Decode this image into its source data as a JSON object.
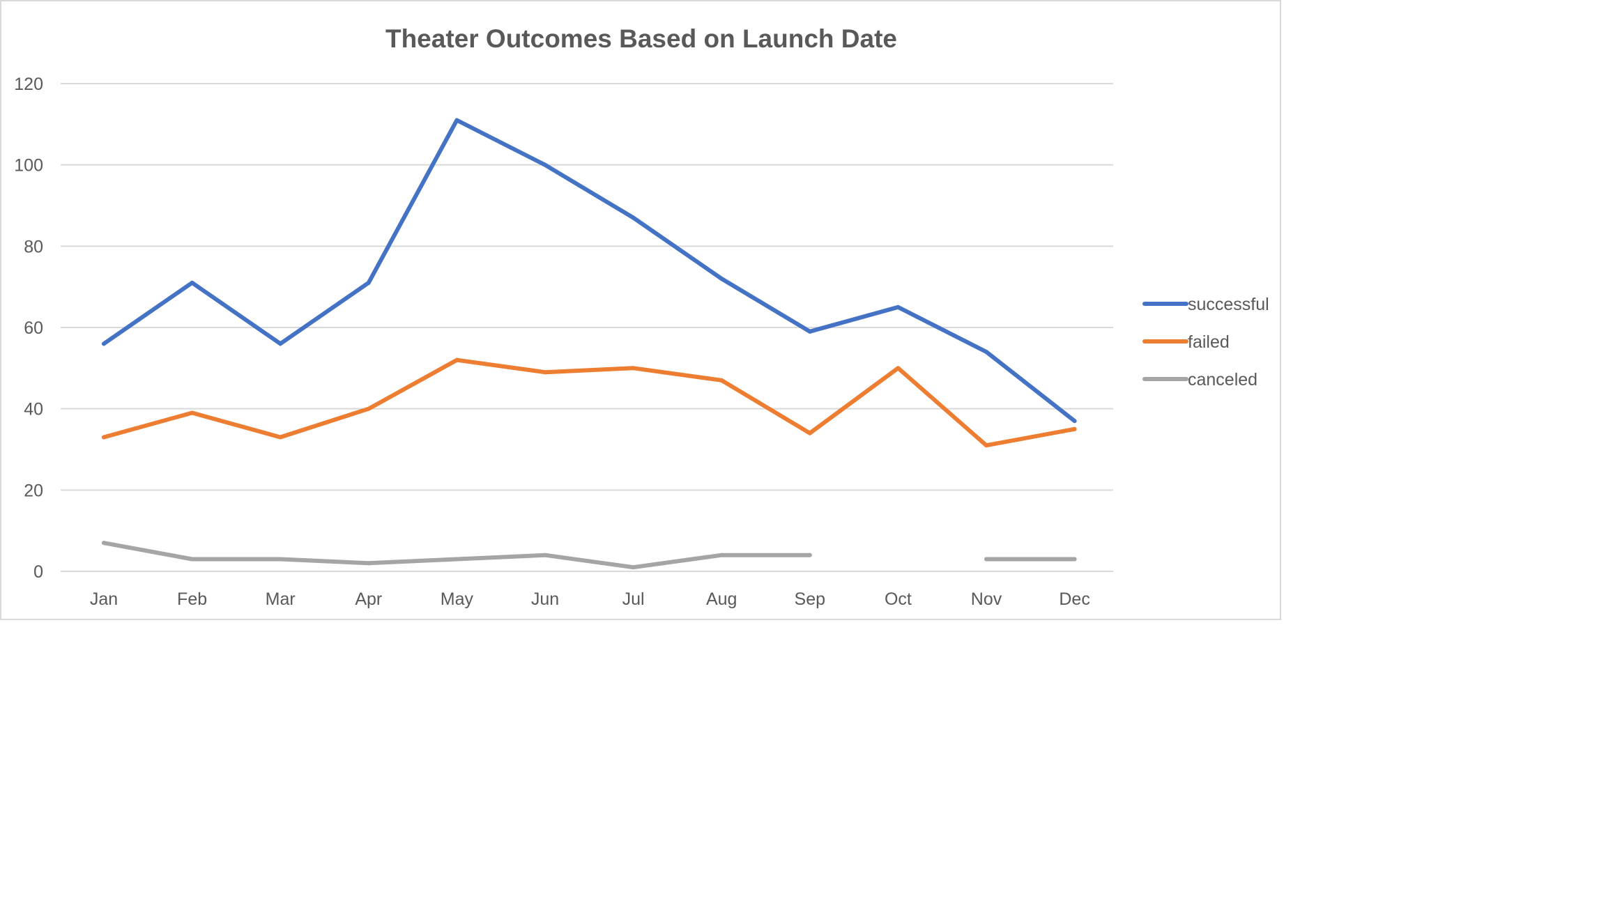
{
  "chart_data": {
    "type": "line",
    "title": "Theater Outcomes Based on Launch Date",
    "xlabel": "",
    "ylabel": "",
    "categories": [
      "Jan",
      "Feb",
      "Mar",
      "Apr",
      "May",
      "Jun",
      "Jul",
      "Aug",
      "Sep",
      "Oct",
      "Nov",
      "Dec"
    ],
    "ylim": [
      0,
      120
    ],
    "yticks": [
      0,
      20,
      40,
      60,
      80,
      100,
      120
    ],
    "grid": true,
    "legend_position": "right",
    "series": [
      {
        "name": "successful",
        "color": "#4472c4",
        "values": [
          56,
          71,
          56,
          71,
          111,
          100,
          87,
          72,
          59,
          65,
          54,
          37
        ]
      },
      {
        "name": "failed",
        "color": "#ed7d31",
        "values": [
          33,
          39,
          33,
          40,
          52,
          49,
          50,
          47,
          34,
          50,
          31,
          35
        ]
      },
      {
        "name": "canceled",
        "color": "#a5a5a5",
        "values": [
          7,
          3,
          3,
          2,
          3,
          4,
          1,
          4,
          4,
          null,
          3,
          3
        ]
      }
    ]
  }
}
